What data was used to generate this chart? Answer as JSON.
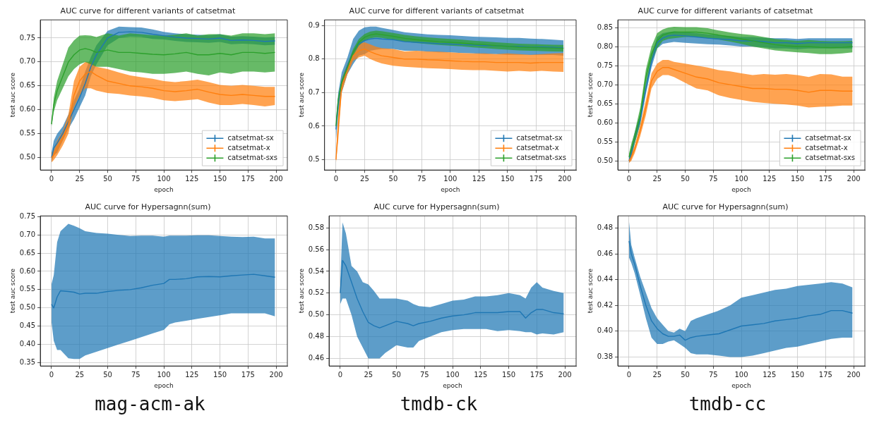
{
  "chart_data": [
    {
      "type": "line",
      "title": "AUC curve for different variants of catsetmat",
      "xlabel": "epoch",
      "ylabel": "test auc score",
      "xlim": [
        -10,
        210
      ],
      "xticks": [
        0,
        25,
        50,
        75,
        100,
        125,
        150,
        175,
        200
      ],
      "ylim": [
        0.474,
        0.788
      ],
      "yticks": [
        {
          "value": 0.5,
          "label": "0.50"
        },
        0.55,
        {
          "value": 0.6,
          "label": "0.60"
        },
        0.65,
        {
          "value": 0.7,
          "label": "0.70"
        },
        0.75
      ],
      "grid": true,
      "legend": "bottom right",
      "x": [
        0,
        2,
        5,
        10,
        15,
        20,
        25,
        30,
        35,
        40,
        50,
        60,
        70,
        80,
        90,
        100,
        110,
        120,
        130,
        140,
        150,
        160,
        170,
        180,
        190,
        199
      ],
      "series": [
        {
          "name": "catsetmat-sx",
          "color": "#1f77b4",
          "values": [
            0.5,
            0.52,
            0.53,
            0.55,
            0.575,
            0.6,
            0.625,
            0.655,
            0.69,
            0.715,
            0.75,
            0.762,
            0.763,
            0.762,
            0.758,
            0.755,
            0.752,
            0.75,
            0.749,
            0.748,
            0.75,
            0.745,
            0.746,
            0.745,
            0.743,
            0.744
          ],
          "lower": [
            0.49,
            0.505,
            0.51,
            0.535,
            0.56,
            0.58,
            0.605,
            0.63,
            0.67,
            0.695,
            0.735,
            0.75,
            0.753,
            0.752,
            0.748,
            0.747,
            0.744,
            0.742,
            0.741,
            0.74,
            0.742,
            0.737,
            0.738,
            0.737,
            0.735,
            0.736
          ],
          "upper": [
            0.51,
            0.535,
            0.55,
            0.565,
            0.59,
            0.62,
            0.645,
            0.68,
            0.71,
            0.735,
            0.765,
            0.774,
            0.773,
            0.772,
            0.768,
            0.763,
            0.76,
            0.758,
            0.757,
            0.756,
            0.758,
            0.753,
            0.754,
            0.753,
            0.751,
            0.752
          ]
        },
        {
          "name": "catsetmat-x",
          "color": "#ff7f0e",
          "values": [
            0.5,
            0.505,
            0.52,
            0.54,
            0.57,
            0.63,
            0.66,
            0.675,
            0.68,
            0.672,
            0.66,
            0.655,
            0.65,
            0.648,
            0.645,
            0.64,
            0.638,
            0.64,
            0.643,
            0.637,
            0.632,
            0.63,
            0.632,
            0.63,
            0.628,
            0.628
          ],
          "lower": [
            0.49,
            0.495,
            0.505,
            0.525,
            0.55,
            0.605,
            0.63,
            0.645,
            0.645,
            0.64,
            0.635,
            0.633,
            0.63,
            0.628,
            0.625,
            0.62,
            0.618,
            0.62,
            0.622,
            0.615,
            0.61,
            0.61,
            0.612,
            0.61,
            0.607,
            0.61
          ],
          "upper": [
            0.51,
            0.515,
            0.535,
            0.555,
            0.59,
            0.66,
            0.69,
            0.7,
            0.7,
            0.69,
            0.685,
            0.678,
            0.672,
            0.668,
            0.665,
            0.66,
            0.658,
            0.66,
            0.663,
            0.658,
            0.652,
            0.65,
            0.652,
            0.65,
            0.648,
            0.648
          ]
        },
        {
          "name": "catsetmat-sxs",
          "color": "#2ca02c",
          "values": [
            0.57,
            0.61,
            0.64,
            0.67,
            0.7,
            0.715,
            0.725,
            0.728,
            0.725,
            0.72,
            0.725,
            0.72,
            0.72,
            0.718,
            0.716,
            0.715,
            0.717,
            0.72,
            0.715,
            0.715,
            0.718,
            0.715,
            0.72,
            0.72,
            0.718,
            0.72
          ],
          "lower": [
            0.565,
            0.595,
            0.62,
            0.645,
            0.67,
            0.685,
            0.695,
            0.7,
            0.695,
            0.69,
            0.69,
            0.685,
            0.68,
            0.678,
            0.675,
            0.675,
            0.677,
            0.68,
            0.675,
            0.672,
            0.678,
            0.675,
            0.68,
            0.68,
            0.678,
            0.68
          ],
          "upper": [
            0.575,
            0.625,
            0.66,
            0.695,
            0.73,
            0.745,
            0.755,
            0.756,
            0.755,
            0.752,
            0.76,
            0.755,
            0.76,
            0.758,
            0.756,
            0.755,
            0.757,
            0.76,
            0.755,
            0.758,
            0.758,
            0.755,
            0.76,
            0.76,
            0.758,
            0.76
          ]
        }
      ]
    },
    {
      "type": "line",
      "title": "AUC curve for different variants of catsetmat",
      "xlabel": "epoch",
      "ylabel": "test auc score",
      "xlim": [
        -10,
        210
      ],
      "xticks": [
        0,
        25,
        50,
        75,
        100,
        125,
        150,
        175,
        200
      ],
      "ylim": [
        0.469,
        0.917
      ],
      "yticks": [
        0.5,
        0.6,
        0.7,
        0.8,
        0.9
      ],
      "grid": true,
      "legend": "bottom right",
      "x": [
        0,
        2,
        5,
        10,
        15,
        20,
        25,
        30,
        35,
        40,
        50,
        60,
        70,
        80,
        90,
        100,
        110,
        120,
        130,
        140,
        150,
        160,
        170,
        180,
        190,
        199
      ],
      "series": [
        {
          "name": "catsetmat-sx",
          "color": "#1f77b4",
          "values": [
            0.59,
            0.67,
            0.73,
            0.78,
            0.82,
            0.845,
            0.855,
            0.86,
            0.862,
            0.86,
            0.858,
            0.852,
            0.85,
            0.848,
            0.846,
            0.845,
            0.843,
            0.842,
            0.84,
            0.84,
            0.838,
            0.838,
            0.836,
            0.836,
            0.835,
            0.833
          ],
          "lower": [
            0.56,
            0.64,
            0.7,
            0.755,
            0.785,
            0.81,
            0.815,
            0.825,
            0.828,
            0.83,
            0.83,
            0.825,
            0.825,
            0.822,
            0.82,
            0.82,
            0.818,
            0.817,
            0.815,
            0.815,
            0.813,
            0.813,
            0.812,
            0.812,
            0.812,
            0.81
          ],
          "upper": [
            0.62,
            0.7,
            0.76,
            0.805,
            0.86,
            0.885,
            0.895,
            0.897,
            0.897,
            0.893,
            0.887,
            0.88,
            0.877,
            0.874,
            0.872,
            0.871,
            0.869,
            0.867,
            0.866,
            0.865,
            0.863,
            0.863,
            0.861,
            0.86,
            0.858,
            0.856
          ]
        },
        {
          "name": "catsetmat-x",
          "color": "#ff7f0e",
          "values": [
            0.5,
            0.6,
            0.72,
            0.77,
            0.81,
            0.825,
            0.83,
            0.822,
            0.815,
            0.81,
            0.805,
            0.8,
            0.8,
            0.798,
            0.797,
            0.795,
            0.793,
            0.792,
            0.792,
            0.79,
            0.79,
            0.79,
            0.788,
            0.79,
            0.79,
            0.79
          ],
          "lower": [
            0.49,
            0.56,
            0.7,
            0.755,
            0.795,
            0.805,
            0.81,
            0.8,
            0.793,
            0.787,
            0.78,
            0.777,
            0.775,
            0.773,
            0.772,
            0.77,
            0.768,
            0.767,
            0.767,
            0.765,
            0.763,
            0.765,
            0.763,
            0.765,
            0.763,
            0.762
          ],
          "upper": [
            0.51,
            0.64,
            0.74,
            0.785,
            0.825,
            0.845,
            0.85,
            0.844,
            0.837,
            0.833,
            0.83,
            0.823,
            0.825,
            0.823,
            0.822,
            0.82,
            0.818,
            0.817,
            0.817,
            0.815,
            0.817,
            0.815,
            0.813,
            0.815,
            0.817,
            0.818
          ]
        },
        {
          "name": "catsetmat-sxs",
          "color": "#2ca02c",
          "values": [
            0.6,
            0.68,
            0.73,
            0.775,
            0.82,
            0.85,
            0.865,
            0.872,
            0.875,
            0.873,
            0.868,
            0.862,
            0.858,
            0.855,
            0.852,
            0.85,
            0.848,
            0.845,
            0.843,
            0.84,
            0.838,
            0.836,
            0.835,
            0.834,
            0.833,
            0.832
          ],
          "lower": [
            0.59,
            0.67,
            0.72,
            0.765,
            0.81,
            0.84,
            0.855,
            0.862,
            0.865,
            0.863,
            0.858,
            0.852,
            0.848,
            0.845,
            0.842,
            0.84,
            0.838,
            0.835,
            0.833,
            0.83,
            0.828,
            0.826,
            0.825,
            0.824,
            0.823,
            0.822
          ],
          "upper": [
            0.61,
            0.69,
            0.74,
            0.785,
            0.83,
            0.86,
            0.875,
            0.882,
            0.885,
            0.883,
            0.878,
            0.872,
            0.868,
            0.865,
            0.862,
            0.86,
            0.858,
            0.855,
            0.853,
            0.85,
            0.848,
            0.846,
            0.845,
            0.844,
            0.843,
            0.842
          ]
        }
      ]
    },
    {
      "type": "line",
      "title": "AUC curve for different variants of catsetmat",
      "xlabel": "epoch",
      "ylabel": "test auc score",
      "xlim": [
        -10,
        210
      ],
      "xticks": [
        0,
        25,
        50,
        75,
        100,
        125,
        150,
        175,
        200
      ],
      "ylim": [
        0.476,
        0.87
      ],
      "yticks": [
        {
          "value": 0.5,
          "label": "0.50"
        },
        0.55,
        {
          "value": 0.6,
          "label": "0.60"
        },
        0.65,
        {
          "value": 0.7,
          "label": "0.70"
        },
        0.75,
        {
          "value": 0.8,
          "label": "0.80"
        },
        0.85
      ],
      "grid": true,
      "legend": "bottom right",
      "x": [
        0,
        2,
        5,
        10,
        15,
        20,
        25,
        30,
        35,
        40,
        50,
        60,
        70,
        80,
        90,
        100,
        110,
        120,
        130,
        140,
        150,
        160,
        170,
        180,
        190,
        199
      ],
      "series": [
        {
          "name": "catsetmat-sx",
          "color": "#1f77b4",
          "values": [
            0.5,
            0.52,
            0.56,
            0.61,
            0.69,
            0.76,
            0.81,
            0.822,
            0.828,
            0.83,
            0.828,
            0.825,
            0.822,
            0.82,
            0.818,
            0.815,
            0.815,
            0.813,
            0.81,
            0.81,
            0.808,
            0.81,
            0.81,
            0.81,
            0.81,
            0.81
          ],
          "lower": [
            0.495,
            0.505,
            0.545,
            0.595,
            0.675,
            0.745,
            0.795,
            0.807,
            0.81,
            0.812,
            0.81,
            0.808,
            0.806,
            0.805,
            0.803,
            0.8,
            0.8,
            0.798,
            0.795,
            0.795,
            0.793,
            0.795,
            0.795,
            0.795,
            0.795,
            0.795
          ],
          "upper": [
            0.505,
            0.535,
            0.575,
            0.625,
            0.705,
            0.775,
            0.825,
            0.835,
            0.838,
            0.84,
            0.838,
            0.835,
            0.832,
            0.83,
            0.828,
            0.825,
            0.825,
            0.823,
            0.822,
            0.822,
            0.82,
            0.822,
            0.822,
            0.822,
            0.822,
            0.822
          ]
        },
        {
          "name": "catsetmat-x",
          "color": "#ff7f0e",
          "values": [
            0.5,
            0.51,
            0.53,
            0.58,
            0.64,
            0.71,
            0.735,
            0.745,
            0.745,
            0.74,
            0.73,
            0.72,
            0.715,
            0.705,
            0.7,
            0.695,
            0.69,
            0.69,
            0.688,
            0.688,
            0.685,
            0.68,
            0.685,
            0.685,
            0.683,
            0.683
          ],
          "lower": [
            0.495,
            0.5,
            0.52,
            0.565,
            0.62,
            0.69,
            0.715,
            0.725,
            0.725,
            0.72,
            0.705,
            0.69,
            0.685,
            0.672,
            0.665,
            0.66,
            0.655,
            0.652,
            0.65,
            0.648,
            0.645,
            0.64,
            0.642,
            0.643,
            0.645,
            0.645
          ],
          "upper": [
            0.505,
            0.52,
            0.54,
            0.595,
            0.66,
            0.73,
            0.755,
            0.765,
            0.765,
            0.76,
            0.755,
            0.75,
            0.745,
            0.738,
            0.735,
            0.73,
            0.725,
            0.728,
            0.726,
            0.728,
            0.725,
            0.72,
            0.728,
            0.727,
            0.721,
            0.721
          ]
        },
        {
          "name": "catsetmat-sxs",
          "color": "#2ca02c",
          "values": [
            0.51,
            0.53,
            0.56,
            0.62,
            0.72,
            0.78,
            0.815,
            0.83,
            0.835,
            0.838,
            0.838,
            0.838,
            0.835,
            0.83,
            0.825,
            0.82,
            0.815,
            0.81,
            0.805,
            0.802,
            0.8,
            0.8,
            0.798,
            0.797,
            0.798,
            0.8
          ],
          "lower": [
            0.5,
            0.515,
            0.545,
            0.6,
            0.7,
            0.76,
            0.795,
            0.815,
            0.82,
            0.822,
            0.825,
            0.825,
            0.822,
            0.818,
            0.813,
            0.807,
            0.8,
            0.795,
            0.79,
            0.787,
            0.785,
            0.783,
            0.78,
            0.78,
            0.782,
            0.785
          ],
          "upper": [
            0.52,
            0.545,
            0.575,
            0.64,
            0.74,
            0.8,
            0.835,
            0.845,
            0.85,
            0.852,
            0.851,
            0.851,
            0.848,
            0.842,
            0.837,
            0.833,
            0.83,
            0.825,
            0.82,
            0.817,
            0.815,
            0.817,
            0.815,
            0.814,
            0.814,
            0.815
          ]
        }
      ]
    },
    {
      "type": "line",
      "title": "AUC curve for Hypersagnn(sum)",
      "xlabel": "epoch",
      "ylabel": "test auc score",
      "xlim": [
        -10,
        210
      ],
      "xticks": [
        0,
        25,
        50,
        75,
        100,
        125,
        150,
        175,
        200
      ],
      "ylim": [
        0.341,
        0.752
      ],
      "yticks": [
        0.35,
        {
          "value": 0.4,
          "label": "0.40"
        },
        0.45,
        {
          "value": 0.5,
          "label": "0.50"
        },
        0.55,
        {
          "value": 0.6,
          "label": "0.60"
        },
        0.65,
        {
          "value": 0.7,
          "label": "0.70"
        },
        0.75
      ],
      "grid": true,
      "annotations": [
        "mag-acm-ak"
      ],
      "x": [
        0,
        2,
        5,
        8,
        15,
        20,
        25,
        30,
        40,
        50,
        60,
        70,
        80,
        90,
        100,
        105,
        110,
        120,
        130,
        140,
        150,
        160,
        170,
        180,
        190,
        199
      ],
      "series": [
        {
          "color": "#1f77b4",
          "values": [
            0.51,
            0.5,
            0.53,
            0.547,
            0.545,
            0.543,
            0.538,
            0.54,
            0.54,
            0.545,
            0.548,
            0.55,
            0.555,
            0.562,
            0.567,
            0.578,
            0.578,
            0.58,
            0.585,
            0.586,
            0.585,
            0.588,
            0.59,
            0.592,
            0.588,
            0.584
          ],
          "lower": [
            0.46,
            0.41,
            0.385,
            0.385,
            0.362,
            0.36,
            0.36,
            0.37,
            0.38,
            0.39,
            0.4,
            0.41,
            0.42,
            0.43,
            0.44,
            0.455,
            0.46,
            0.465,
            0.47,
            0.475,
            0.48,
            0.485,
            0.485,
            0.485,
            0.485,
            0.477
          ],
          "upper": [
            0.565,
            0.59,
            0.68,
            0.71,
            0.73,
            0.725,
            0.718,
            0.71,
            0.705,
            0.703,
            0.7,
            0.697,
            0.698,
            0.698,
            0.695,
            0.698,
            0.698,
            0.698,
            0.699,
            0.699,
            0.697,
            0.695,
            0.694,
            0.695,
            0.69,
            0.69
          ]
        }
      ]
    },
    {
      "type": "line",
      "title": "AUC curve for Hypersagnn(sum)",
      "xlabel": "epoch",
      "ylabel": "test auc score",
      "xlim": [
        -10,
        210
      ],
      "xticks": [
        0,
        25,
        50,
        75,
        100,
        125,
        150,
        175,
        200
      ],
      "ylim": [
        0.453,
        0.591
      ],
      "yticks": [
        0.46,
        0.48,
        {
          "value": 0.5,
          "label": "0.50"
        },
        0.52,
        0.54,
        0.56,
        0.58
      ],
      "grid": true,
      "annotations": [
        "tmdb-ck"
      ],
      "x": [
        0,
        2,
        5,
        10,
        15,
        20,
        25,
        30,
        35,
        40,
        50,
        60,
        65,
        70,
        80,
        90,
        100,
        110,
        120,
        130,
        140,
        150,
        160,
        165,
        170,
        175,
        180,
        190,
        199
      ],
      "series": [
        {
          "color": "#1f77b4",
          "values": [
            0.52,
            0.55,
            0.545,
            0.53,
            0.515,
            0.503,
            0.493,
            0.49,
            0.488,
            0.49,
            0.494,
            0.492,
            0.49,
            0.492,
            0.494,
            0.497,
            0.499,
            0.5,
            0.502,
            0.502,
            0.502,
            0.503,
            0.503,
            0.497,
            0.502,
            0.505,
            0.505,
            0.502,
            0.501
          ],
          "lower": [
            0.51,
            0.515,
            0.515,
            0.5,
            0.48,
            0.47,
            0.46,
            0.46,
            0.46,
            0.465,
            0.472,
            0.47,
            0.47,
            0.476,
            0.48,
            0.484,
            0.486,
            0.487,
            0.487,
            0.487,
            0.485,
            0.486,
            0.485,
            0.484,
            0.484,
            0.482,
            0.483,
            0.482,
            0.484
          ],
          "upper": [
            0.53,
            0.585,
            0.575,
            0.545,
            0.54,
            0.53,
            0.528,
            0.522,
            0.515,
            0.515,
            0.515,
            0.513,
            0.51,
            0.508,
            0.507,
            0.51,
            0.513,
            0.514,
            0.517,
            0.517,
            0.518,
            0.52,
            0.518,
            0.515,
            0.525,
            0.53,
            0.525,
            0.522,
            0.52
          ]
        }
      ]
    },
    {
      "type": "line",
      "title": "AUC curve for Hypersagnn(sum)",
      "xlabel": "epoch",
      "ylabel": "test auc score",
      "xlim": [
        -10,
        210
      ],
      "xticks": [
        0,
        25,
        50,
        75,
        100,
        125,
        150,
        175,
        200
      ],
      "ylim": [
        0.373,
        0.4895
      ],
      "yticks": [
        0.38,
        {
          "value": 0.4,
          "label": "0.40"
        },
        0.42,
        0.44,
        0.46,
        0.48
      ],
      "grid": true,
      "annotations": [
        "tmdb-cc"
      ],
      "x": [
        0,
        2,
        5,
        10,
        15,
        20,
        25,
        30,
        35,
        40,
        45,
        50,
        55,
        60,
        70,
        80,
        90,
        100,
        110,
        120,
        130,
        140,
        150,
        160,
        170,
        180,
        190,
        199
      ],
      "series": [
        {
          "color": "#1f77b4",
          "values": [
            0.47,
            0.46,
            0.452,
            0.435,
            0.42,
            0.408,
            0.402,
            0.398,
            0.396,
            0.396,
            0.397,
            0.393,
            0.395,
            0.396,
            0.397,
            0.398,
            0.401,
            0.404,
            0.405,
            0.406,
            0.408,
            0.409,
            0.41,
            0.412,
            0.413,
            0.416,
            0.416,
            0.414
          ],
          "lower": [
            0.457,
            0.453,
            0.445,
            0.428,
            0.41,
            0.395,
            0.39,
            0.39,
            0.392,
            0.393,
            0.39,
            0.387,
            0.383,
            0.382,
            0.382,
            0.381,
            0.38,
            0.38,
            0.381,
            0.383,
            0.385,
            0.387,
            0.388,
            0.39,
            0.392,
            0.394,
            0.395,
            0.395
          ],
          "upper": [
            0.485,
            0.467,
            0.457,
            0.442,
            0.43,
            0.418,
            0.41,
            0.405,
            0.4,
            0.399,
            0.402,
            0.4,
            0.408,
            0.41,
            0.413,
            0.416,
            0.42,
            0.426,
            0.428,
            0.43,
            0.432,
            0.433,
            0.435,
            0.436,
            0.437,
            0.438,
            0.437,
            0.434
          ]
        }
      ]
    }
  ]
}
